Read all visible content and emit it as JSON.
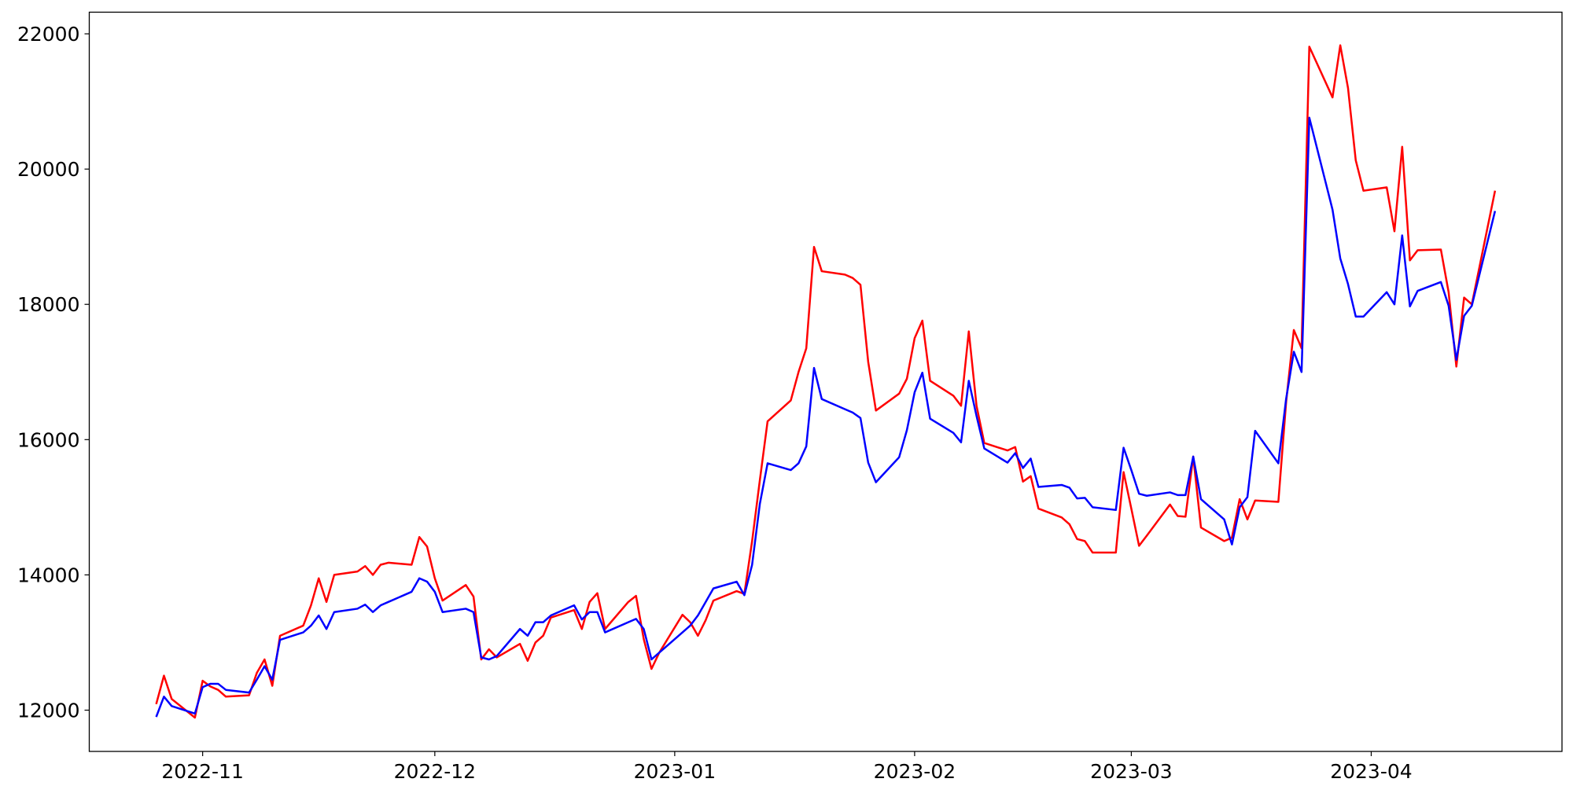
{
  "chart_data": {
    "type": "line",
    "x": [
      19291,
      19292,
      19293,
      19296,
      19297,
      19298,
      19299,
      19300,
      19303,
      19304,
      19305,
      19306,
      19307,
      19310,
      19311,
      19312,
      19313,
      19314,
      19317,
      19318,
      19319,
      19320,
      19321,
      19324,
      19325,
      19326,
      19327,
      19328,
      19331,
      19332,
      19333,
      19334,
      19335,
      19338,
      19339,
      19340,
      19341,
      19342,
      19345,
      19346,
      19347,
      19348,
      19349,
      19352,
      19353,
      19354,
      19355,
      19356,
      19359,
      19360,
      19361,
      19362,
      19363,
      19366,
      19367,
      19368,
      19369,
      19370,
      19373,
      19374,
      19375,
      19376,
      19377,
      19380,
      19381,
      19382,
      19383,
      19384,
      19387,
      19388,
      19389,
      19390,
      19391,
      19394,
      19395,
      19396,
      19397,
      19398,
      19401,
      19402,
      19403,
      19404,
      19405,
      19408,
      19409,
      19410,
      19411,
      19412,
      19415,
      19416,
      19417,
      19418,
      19419,
      19422,
      19423,
      19424,
      19425,
      19426,
      19429,
      19430,
      19431,
      19432,
      19433,
      19436,
      19437,
      19438,
      19439,
      19440,
      19443,
      19444,
      19445,
      19446,
      19447,
      19450,
      19451,
      19452,
      19453,
      19454,
      19457,
      19458,
      19459,
      19460,
      19461,
      19464
    ],
    "series": [
      {
        "color": "#ff0000",
        "values": [
          12090,
          12510,
          12165,
          11890,
          12435,
          12350,
          12300,
          12200,
          12220,
          12550,
          12750,
          12360,
          13100,
          13250,
          13550,
          13950,
          13600,
          14000,
          14050,
          14130,
          14000,
          14150,
          14180,
          14150,
          14560,
          14420,
          13950,
          13620,
          13850,
          13680,
          12750,
          12900,
          12780,
          12980,
          12730,
          13000,
          13100,
          13370,
          13480,
          13200,
          13600,
          13730,
          13200,
          13600,
          13690,
          13050,
          12610,
          12850,
          13410,
          13300,
          13100,
          13330,
          13620,
          13760,
          13720,
          14500,
          15400,
          16270,
          16580,
          17000,
          17350,
          18850,
          18490,
          18440,
          18390,
          18290,
          17150,
          16430,
          16680,
          16900,
          17500,
          17760,
          16870,
          16650,
          16500,
          17600,
          16500,
          15950,
          15840,
          15890,
          15380,
          15460,
          14980,
          14850,
          14750,
          14530,
          14500,
          14330,
          14330,
          15520,
          14980,
          14430,
          14580,
          15040,
          14870,
          14860,
          15750,
          14700,
          14500,
          14550,
          15120,
          14820,
          15100,
          15080,
          16550,
          17620,
          17350,
          21810,
          21060,
          21830,
          21200,
          20130,
          19680,
          19730,
          19080,
          20330,
          18650,
          18800,
          18810,
          18180,
          17080,
          18100,
          18000,
          19680
        ]
      },
      {
        "color": "#0000ff",
        "values": [
          11900,
          12200,
          12060,
          11950,
          12340,
          12390,
          12390,
          12300,
          12260,
          12450,
          12650,
          12450,
          13040,
          13150,
          13250,
          13400,
          13200,
          13450,
          13500,
          13560,
          13450,
          13550,
          13600,
          13750,
          13950,
          13900,
          13750,
          13450,
          13500,
          13450,
          12780,
          12750,
          12800,
          13200,
          13100,
          13300,
          13300,
          13400,
          13550,
          13340,
          13450,
          13450,
          13150,
          13300,
          13350,
          13200,
          12750,
          12850,
          13150,
          13250,
          13400,
          13600,
          13800,
          13900,
          13700,
          14150,
          15050,
          15650,
          15550,
          15650,
          15900,
          17060,
          16600,
          16450,
          16400,
          16320,
          15660,
          15370,
          15740,
          16140,
          16700,
          16990,
          16310,
          16100,
          15960,
          16870,
          16350,
          15870,
          15660,
          15800,
          15580,
          15720,
          15300,
          15330,
          15290,
          15130,
          15140,
          15000,
          14960,
          15880,
          15550,
          15200,
          15170,
          15220,
          15180,
          15180,
          15750,
          15120,
          14820,
          14450,
          15000,
          15150,
          16130,
          15650,
          16600,
          17300,
          17000,
          20760,
          19400,
          18680,
          18300,
          17820,
          17820,
          18180,
          18000,
          19020,
          17970,
          18200,
          18330,
          17980,
          17180,
          17830,
          17980,
          19380
        ]
      }
    ],
    "xlim": [
      19282.35,
      19472.65
    ],
    "xticks": [
      {
        "value": 19297,
        "label": "2022-11"
      },
      {
        "value": 19327,
        "label": "2022-12"
      },
      {
        "value": 19358,
        "label": "2023-01"
      },
      {
        "value": 19389,
        "label": "2023-02"
      },
      {
        "value": 19417,
        "label": "2023-03"
      },
      {
        "value": 19448,
        "label": "2023-04"
      }
    ],
    "ylim": [
      11390,
      22320
    ],
    "yticks": [
      12000,
      14000,
      16000,
      18000,
      20000,
      22000
    ],
    "grid": false
  }
}
